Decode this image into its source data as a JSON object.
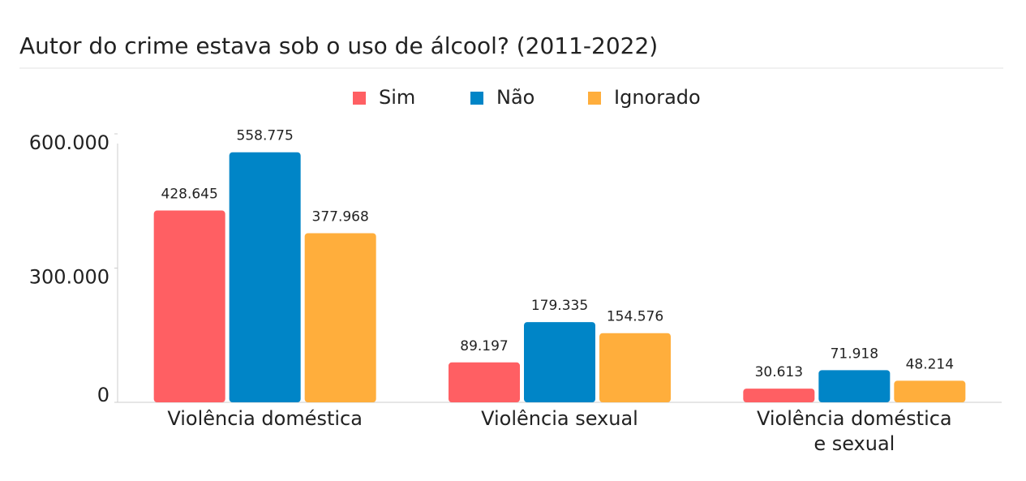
{
  "chart_data": {
    "type": "bar",
    "title": "Autor do crime estava sob o uso de álcool? (2011-2022)",
    "categories": [
      "Violência doméstica",
      "Violência sexual",
      "Violência doméstica\ne sexual"
    ],
    "series": [
      {
        "name": "Sim",
        "color": "#ff5f63",
        "values": [
          428645,
          89197,
          30613
        ],
        "value_labels": [
          "428.645",
          "89.197",
          "30.613"
        ]
      },
      {
        "name": "Não",
        "color": "#0085c7",
        "values": [
          558775,
          179335,
          71918
        ],
        "value_labels": [
          "558.775",
          "179.335",
          "71.918"
        ]
      },
      {
        "name": "Ignorado",
        "color": "#ffae3c",
        "values": [
          377968,
          154576,
          48214
        ],
        "value_labels": [
          "377.968",
          "154.576",
          "48.214"
        ]
      }
    ],
    "ylim": [
      0,
      600000
    ],
    "yticks": [
      0,
      {
        "value": 300000,
        "label": "300.000"
      },
      {
        "value": 600000,
        "label": "600.000"
      }
    ],
    "grid": false
  }
}
